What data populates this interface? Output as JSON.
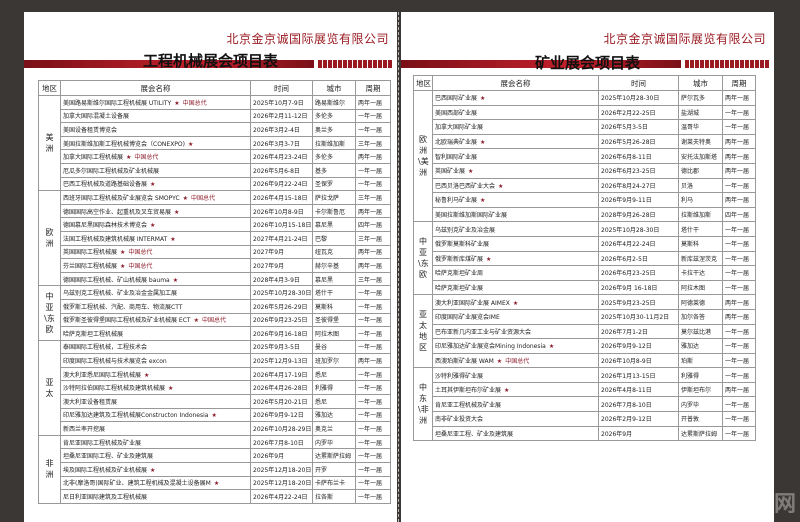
{
  "company": "北京金京诚国际展览有限公司",
  "headers": [
    "地区",
    "展会名称",
    "时间",
    "城市",
    "周期"
  ],
  "left": {
    "title": "工程机械展会项目表",
    "groups": [
      {
        "region": "美洲",
        "rows": [
          [
            "美国路易斯维尔国际工程机械展 UTILITY",
            true,
            "中国总代",
            "2025年10月7-9日",
            "路易斯维尔",
            "两年一届"
          ],
          [
            "加拿大国际混凝土设备展",
            false,
            "",
            "2026年2月11-12日",
            "多伦多",
            "一年一届"
          ],
          [
            "美国设备租赁博览会",
            false,
            "",
            "2026年3月2-4日",
            "奥兰多",
            "一年一届"
          ],
          [
            "美国拉斯维加斯工程机械博览会（CONEXPO)",
            true,
            "",
            "2026年3月3-7日",
            "拉斯维加斯",
            "三年一届"
          ],
          [
            "加拿大国际工程机械展",
            true,
            "中国总代",
            "2026年4月23-24日",
            "多伦多",
            "两年一届"
          ],
          [
            "厄瓜多尔国际工程机械及矿业机械展",
            false,
            "",
            "2026年5月6-8日",
            "基多",
            "一年一届"
          ],
          [
            "巴西工程机械及道路基础设备展",
            true,
            "",
            "2026年9月22-24日",
            "圣保罗",
            "一年一届"
          ]
        ]
      },
      {
        "region": "欧洲",
        "rows": [
          [
            "西班牙国际工程机械及矿业展览会 SMOPYC",
            true,
            "中国总代",
            "2026年4月15-18日",
            "萨拉戈萨",
            "三年一届"
          ],
          [
            "德国国际高空作业、起重机及叉车贸易展",
            true,
            "",
            "2026年10月8-9日",
            "卡尔斯鲁厄",
            "两年一届"
          ],
          [
            "德国慕尼黑国际森林技术博览会",
            true,
            "",
            "2026年10月15-18日",
            "慕尼黑",
            "四年一届"
          ],
          [
            "法国工程机械及建筑机械展 INTERMAT",
            true,
            "",
            "2027年4月21-24日",
            "巴黎",
            "三年一届"
          ],
          [
            "英国国际工程机械展",
            true,
            "中国总代",
            "2027年9月",
            "纽瓦克",
            "两年一届"
          ],
          [
            "芬兰国际工程机械展",
            true,
            "中国总代",
            "2027年9月",
            "赫尔辛基",
            "两年一届"
          ],
          [
            "德国国际工程机械、矿山机械展 bauma",
            true,
            "",
            "2028年4月3-9日",
            "慕尼黑",
            "三年一届"
          ]
        ]
      },
      {
        "region": "中亚\\东欧",
        "rows": [
          [
            "乌兹别克工程机械、矿业及冶金金属加工展",
            false,
            "",
            "2025年10月28-30日",
            "塔什干",
            "一年一届"
          ],
          [
            "俄罗斯工程机械、汽配、商用车、物流展CTT",
            false,
            "",
            "2026年5月26-29日",
            "莫斯科",
            "一年一届"
          ],
          [
            "俄罗斯圣彼得堡国际工程机械及矿业机械展 ECT",
            true,
            "中国总代",
            "2026年9月23-25日",
            "圣彼得堡",
            "一年一届"
          ],
          [
            "哈萨克斯坦工程机械展",
            false,
            "",
            "2026年9月16-18日",
            "阿拉木图",
            "一年一届"
          ]
        ]
      },
      {
        "region": "亚太",
        "rows": [
          [
            "泰国国际工程机械，工程技术会",
            false,
            "",
            "2025年9月3-5日",
            "曼谷",
            "一年一届"
          ],
          [
            "印度国际工程机械与技术展览会 excon",
            false,
            "",
            "2025年12月9-13日",
            "班加罗尔",
            "两年一届"
          ],
          [
            "澳大利亚悉尼国际工程机械展",
            true,
            "",
            "2026年4月17-19日",
            "悉尼",
            "一年一届"
          ],
          [
            "沙特阿拉伯国际工程机械及建筑机械展",
            true,
            "",
            "2026年4月26-28日",
            "利雅得",
            "一年一届"
          ],
          [
            "澳大利亚设备租赁展",
            false,
            "",
            "2026年5月20-21日",
            "悉尼",
            "一年一届"
          ],
          [
            "印尼雅加达建筑及工程机械展Constructon Indonesia",
            true,
            "",
            "2026年9月9-12日",
            "雅加达",
            "一年一届"
          ],
          [
            "新西兰率开挖展",
            false,
            "",
            "2026年10月28-29日",
            "奥克兰",
            "一年一届"
          ]
        ]
      },
      {
        "region": "非洲",
        "rows": [
          [
            "肯尼亚国际工程机械及矿业展",
            false,
            "",
            "2026年7月8-10日",
            "内罗毕",
            "一年一届"
          ],
          [
            "坦桑尼亚国际工程、矿业及建筑展",
            false,
            "",
            "2026年9月",
            "达累斯萨拉姆",
            "一年一届"
          ],
          [
            "埃及国际工程机械及矿业机械展",
            true,
            "",
            "2025年12月18-20日",
            "开罗",
            "一年一届"
          ],
          [
            "北非(摩洛哥)国际矿业、建筑工程机械及混凝土设备展M",
            true,
            "",
            "2025年12月18-20日",
            "卡萨布兰卡",
            "一年一届"
          ],
          [
            "尼日利亚国际建筑及工程机械展",
            false,
            "",
            "2026年4月22-24日",
            "拉各斯",
            "一年一届"
          ]
        ]
      }
    ]
  },
  "right": {
    "title": "矿业展会项目表",
    "groups": [
      {
        "region": "欧洲\\美洲",
        "rows": [
          [
            "巴西国际矿业展",
            true,
            "",
            "2025年10月28-30日",
            "萨尔瓦多",
            "两年一届"
          ],
          [
            "美国西部矿业展",
            false,
            "",
            "2026年2月22-25日",
            "盐湖城",
            "一年一届"
          ],
          [
            "加拿大国际矿业展",
            false,
            "",
            "2026年5月3-5日",
            "温哥华",
            "一年一届"
          ],
          [
            "北欧瑞典矿业展",
            true,
            "",
            "2026年5月26-28日",
            "谢莱夫特奥",
            "两年一届"
          ],
          [
            "智利国际矿业展",
            false,
            "",
            "2026年6月8-11日",
            "安托法加斯塔",
            "两年一届"
          ],
          [
            "英国矿业展",
            true,
            "",
            "2026年6月23-25日",
            "德比郡",
            "两年一届"
          ],
          [
            "巴西贝洛巴西矿业大会",
            true,
            "",
            "2026年8月24-27日",
            "贝洛",
            "一年一届"
          ],
          [
            "秘鲁利马矿业展",
            true,
            "",
            "2026年9月9-11日",
            "利马",
            "两年一届"
          ],
          [
            "美国拉斯维加斯国际矿业展",
            false,
            "",
            "2028年9月26-28日",
            "拉斯维加斯",
            "四年一届"
          ]
        ]
      },
      {
        "region": "中亚\\东欧",
        "rows": [
          [
            "乌兹别克矿业及冶金展",
            false,
            "",
            "2025年10月28-30日",
            "塔什干",
            "一年一届"
          ],
          [
            "俄罗斯莫斯科矿业展",
            false,
            "",
            "2026年4月22-24日",
            "莫斯科",
            "一年一届"
          ],
          [
            "俄罗斯新库煤矿展",
            true,
            "",
            "2026年6月2-5日",
            "新库兹涅茨克",
            "一年一届"
          ],
          [
            "哈萨克斯坦矿业周",
            false,
            "",
            "2026年6月23-25日",
            "卡拉干达",
            "一年一届"
          ],
          [
            "哈萨克斯坦矿业展",
            false,
            "",
            "2026年9月 16-18日",
            "阿拉木图",
            "一年一届"
          ]
        ]
      },
      {
        "region": "亚太地区",
        "rows": [
          [
            "澳大利亚国际矿业展 AIMEX",
            true,
            "",
            "2025年9月23-25日",
            "阿德莱德",
            "两年一届"
          ],
          [
            "印度国际矿业展览会IME",
            false,
            "",
            "2025年10月30-11月2日",
            "加尔各答",
            "两年一届"
          ],
          [
            "巴布亚新几内亚工业与矿业资源大会",
            false,
            "",
            "2026年7月1-2日",
            "莫尔兹比港",
            "一年一届"
          ],
          [
            "印尼雅加达矿业展览会Mining Indonesia",
            true,
            "",
            "2026年9月9-12日",
            "雅加达",
            "一年一届"
          ],
          [
            "西澳珀斯矿业展 WAM",
            true,
            "中国总代",
            "2026年10月8-9日",
            "珀斯",
            "一年一届"
          ]
        ]
      },
      {
        "region": "中东\\非洲",
        "rows": [
          [
            "沙特利雅得矿业展",
            false,
            "",
            "2026年1月13-15日",
            "利雅得",
            "一年一届"
          ],
          [
            "土耳其伊斯坦布尔矿业展",
            true,
            "",
            "2026年4月8-11日",
            "伊斯坦布尔",
            "两年一届"
          ],
          [
            "肯尼亚工程机械及矿业展",
            false,
            "",
            "2026年7月8-10日",
            "内罗毕",
            "一年一届"
          ],
          [
            "南非矿业投资大会",
            false,
            "",
            "2026年2月9-12日",
            "开普敦",
            "一年一届"
          ],
          [
            "坦桑尼亚工程、矿业及建筑展",
            false,
            "",
            "2026年9月",
            "达累斯萨拉姆",
            "一年一届"
          ]
        ]
      }
    ]
  },
  "colors": {
    "brand_red": "#9a1a22",
    "star": "#8c1c2a",
    "background": "#3b3735"
  },
  "icons": {
    "star": "★"
  }
}
